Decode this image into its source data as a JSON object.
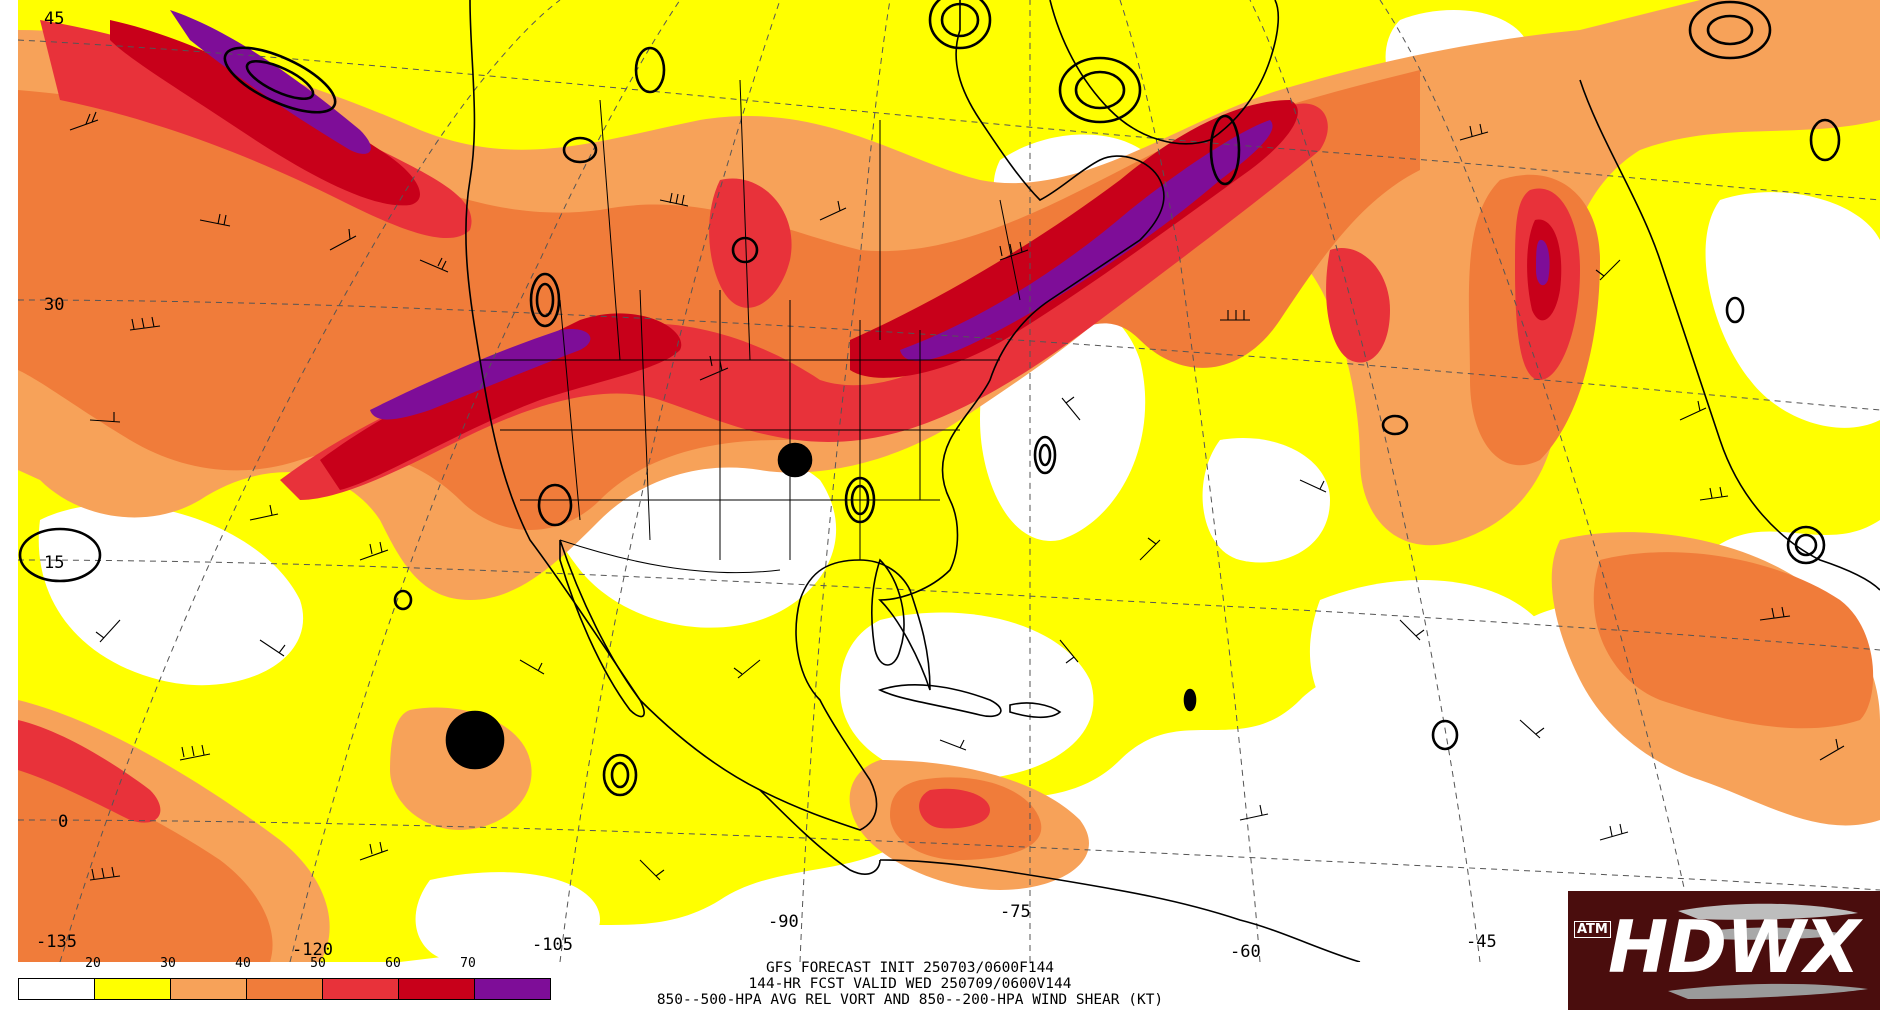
{
  "map": {
    "latitude_labels": [
      "45",
      "30",
      "15",
      "0"
    ],
    "longitude_labels": [
      "-135",
      "-120",
      "-105",
      "-90",
      "-75",
      "-60",
      "-45"
    ]
  },
  "legend": {
    "labels": [
      "20",
      "30",
      "40",
      "50",
      "60",
      "70"
    ],
    "colors": [
      "#ffffff",
      "#ffff00",
      "#f7a259",
      "#f07c3a",
      "#e8323a",
      "#c8001a",
      "#7e0d98"
    ]
  },
  "caption": {
    "line1": "GFS FORECAST INIT 250703/0600F144",
    "line2": "144-HR FCST VALID WED 250709/0600V144",
    "line3": "850--500-HPA AVG REL VORT AND 850--200-HPA WIND SHEAR (KT)"
  },
  "logo": {
    "text": "HDWX",
    "emblem": "ATM"
  },
  "colors": {
    "yellow": "#ffff00",
    "light_orange": "#f7a259",
    "orange": "#f07c3a",
    "red": "#e8323a",
    "dark_red": "#c8001a",
    "purple": "#7e0d98",
    "logo_bg": "#4a0d0d"
  }
}
